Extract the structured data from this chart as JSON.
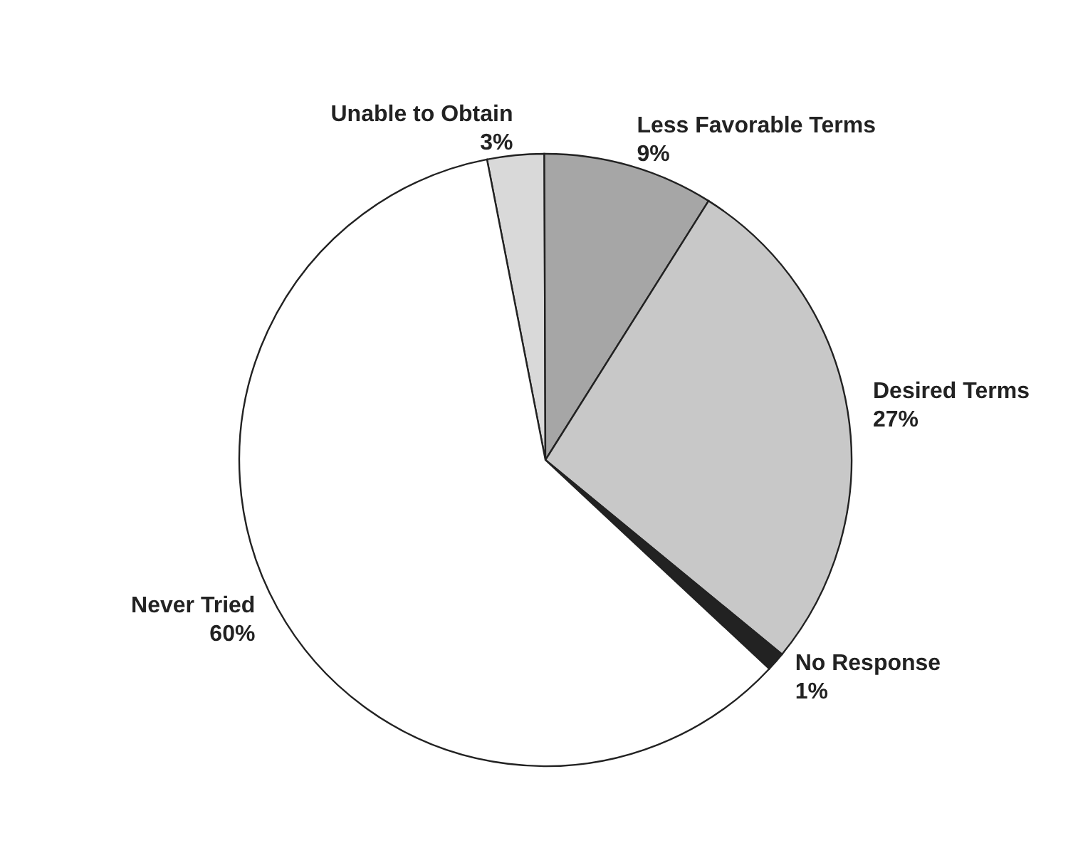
{
  "chart_data": {
    "type": "pie",
    "categories": [
      "Unable to Obtain",
      "Less Favorable Terms",
      "Desired Terms",
      "No Response",
      "Never Tried"
    ],
    "values": [
      3,
      9,
      27,
      1,
      60
    ],
    "colors": [
      "#d9d9d9",
      "#a6a6a6",
      "#c8c8c8",
      "#222222",
      "#ffffff"
    ],
    "value_labels": [
      "3%",
      "9%",
      "27%",
      "1%",
      "60%"
    ]
  }
}
